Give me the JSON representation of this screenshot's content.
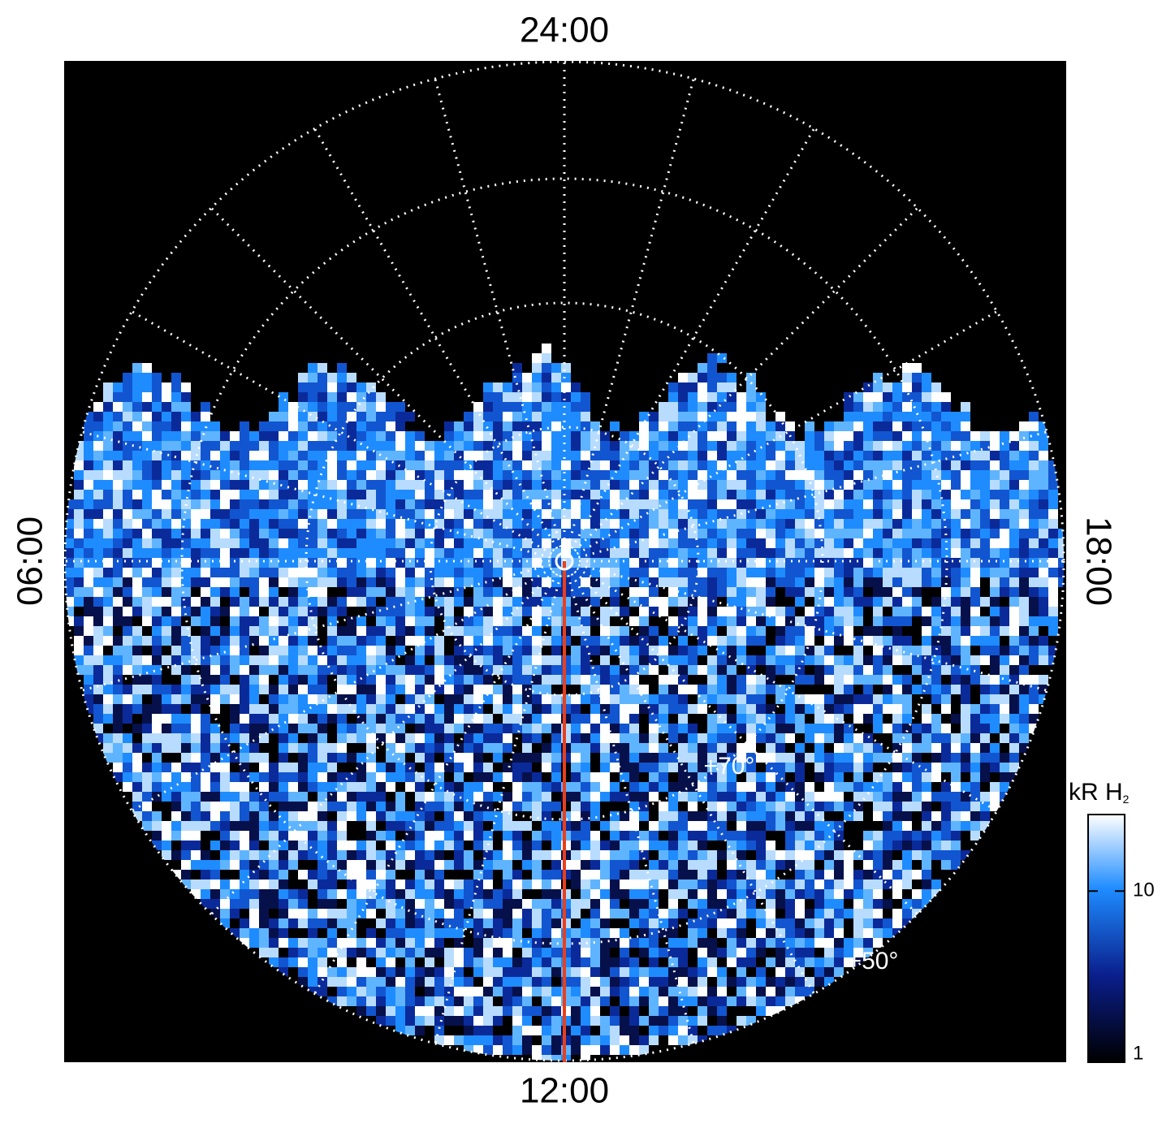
{
  "labels": {
    "top": "24:00",
    "bottom": "12:00",
    "left": "06:00",
    "right": "18:00",
    "lat_inner": "+70°",
    "lat_outer": "+50°"
  },
  "colorbar": {
    "label": "kR H",
    "label_sub": "2",
    "lim": [
      1,
      28
    ],
    "ticks": [
      1,
      10
    ],
    "log": true
  }
}
